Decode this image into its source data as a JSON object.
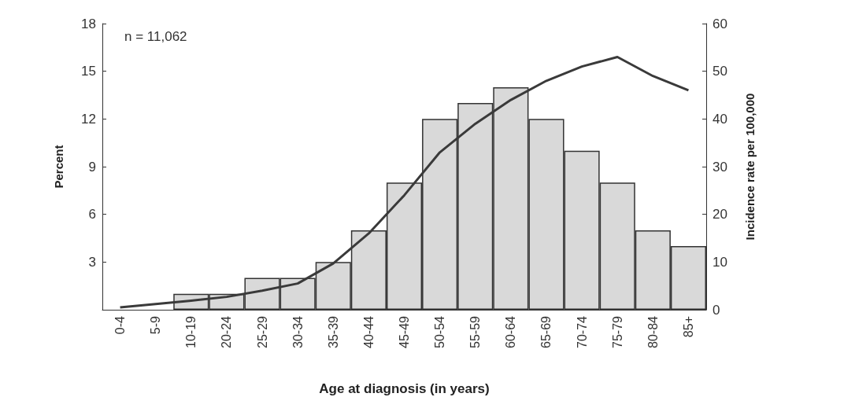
{
  "chart_data": {
    "type": "bar",
    "xlabel": "Age at diagnosis (in years)",
    "ylabel": "Percent",
    "y2label": "Incidence rate per 100,000",
    "annotations": [
      "n = 11,062"
    ],
    "categories": [
      "0-4",
      "5-9",
      "10-19",
      "20-24",
      "25-29",
      "30-34",
      "35-39",
      "40-44",
      "45-49",
      "50-54",
      "55-59",
      "60-64",
      "65-69",
      "70-74",
      "75-79",
      "80-84",
      "85+"
    ],
    "series": [
      {
        "color": "#d9d9d9",
        "values": [
          null,
          null,
          1,
          1,
          2,
          2,
          3,
          5,
          8,
          12,
          13,
          14,
          12,
          10,
          8,
          5,
          4
        ]
      },
      {
        "type": "line",
        "axis": "y2",
        "color": "#3a3a3a",
        "values": [
          0.5,
          1.2,
          1.9,
          2.7,
          4,
          5.5,
          9.7,
          16,
          24,
          33,
          39,
          44,
          48,
          51,
          53,
          49,
          46
        ]
      }
    ],
    "ylim": [
      0,
      18
    ],
    "yticks": [
      {
        "value": 0,
        "label": null
      },
      3,
      6,
      9,
      12,
      15,
      18
    ],
    "y2lim": [
      0,
      60
    ],
    "y2ticks": [
      0,
      10,
      20,
      30,
      40,
      50,
      60
    ],
    "grid": false,
    "marker": "none",
    "line_style": "solid"
  }
}
